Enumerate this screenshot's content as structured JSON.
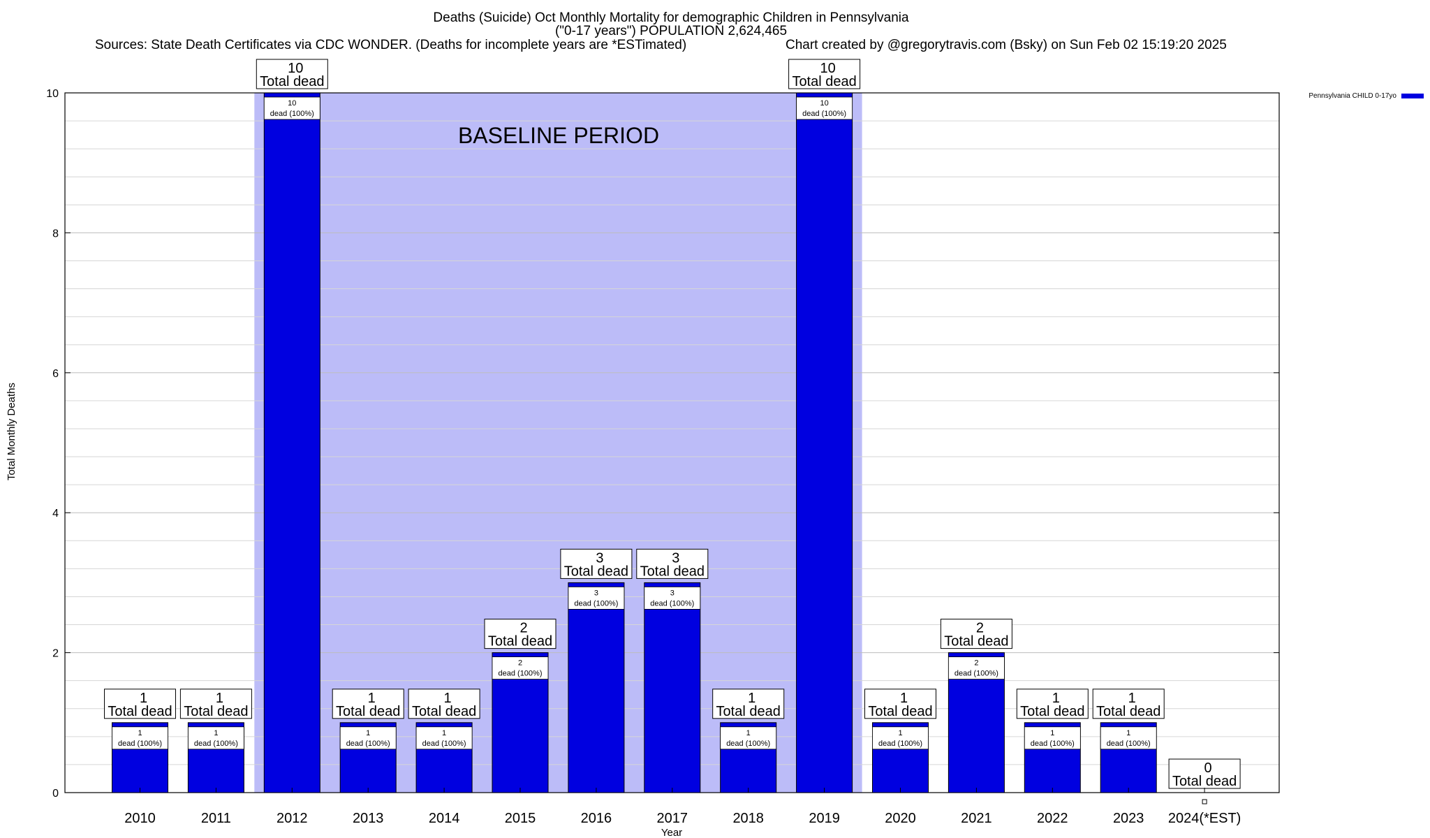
{
  "chart_data": {
    "type": "bar",
    "title_line1": "Deaths (Suicide) Oct Monthly Mortality for demographic Children in Pennsylvania",
    "title_line2": "(\"0-17 years\") POPULATION 2,624,465",
    "sources": "Sources: State Death Certificates via CDC WONDER. (Deaths for incomplete years are *ESTimated)",
    "credit": "Chart created by @gregorytravis.com (Bsky) on Sun Feb 02 15:19:20 2025",
    "xlabel": "Year",
    "ylabel": "Total Monthly Deaths",
    "ylim": [
      0,
      10
    ],
    "yticks": [
      0,
      2,
      4,
      6,
      8,
      10
    ],
    "grid": true,
    "legend_position": "top-right",
    "baseline_label": "BASELINE PERIOD",
    "baseline_range": [
      "2012",
      "2019"
    ],
    "categories": [
      "2010",
      "2011",
      "2012",
      "2013",
      "2014",
      "2015",
      "2016",
      "2017",
      "2018",
      "2019",
      "2020",
      "2021",
      "2022",
      "2023",
      "2024(*EST)"
    ],
    "series": [
      {
        "name": "Pennsylvania CHILD 0-17yo",
        "color": "#0000e0",
        "values": [
          1,
          1,
          10,
          1,
          1,
          2,
          3,
          3,
          1,
          10,
          1,
          2,
          1,
          1,
          0
        ]
      }
    ],
    "total_label_suffix": "Total dead",
    "bar_label_suffix": "dead (100%)",
    "colors": {
      "bar": "#0000e0",
      "baseline_fill": "#bcbcf8",
      "grid": "#cfcfcf"
    }
  }
}
